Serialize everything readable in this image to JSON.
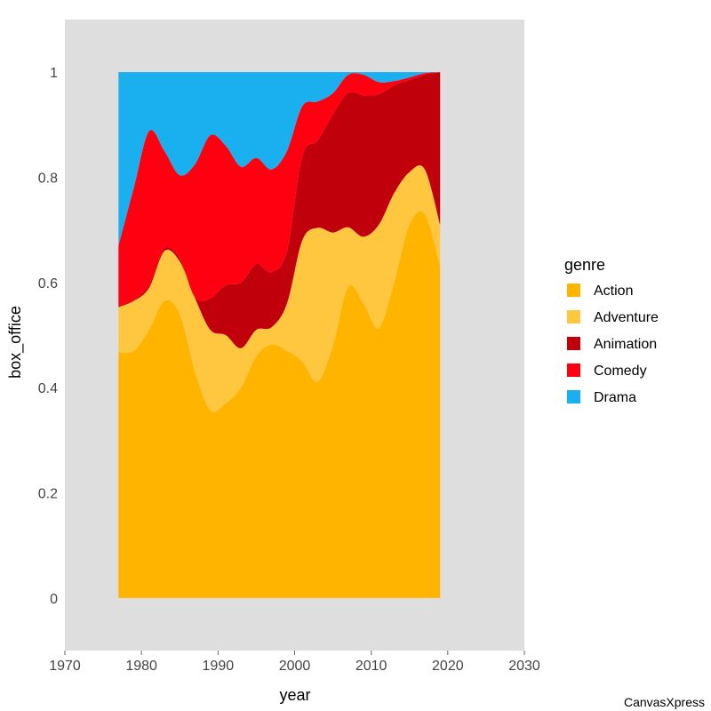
{
  "chart_data": {
    "type": "area",
    "stacked": "proportional",
    "xlabel": "year",
    "ylabel": "box_office",
    "xlim": [
      1970,
      2030
    ],
    "ylim": [
      -0.1,
      1.1
    ],
    "xticks": [
      "1970",
      "1980",
      "1990",
      "2000",
      "2010",
      "2020",
      "2030"
    ],
    "yticks": [
      "0",
      "0.2",
      "0.4",
      "0.6",
      "0.8",
      "1"
    ],
    "legend": {
      "title": "genre",
      "position": "right"
    },
    "x": [
      1977,
      1979,
      1981,
      1983,
      1985,
      1987,
      1989,
      1991,
      1993,
      1995,
      1997,
      1999,
      2001,
      2003,
      2005,
      2007,
      2009,
      2011,
      2013,
      2015,
      2017,
      2019
    ],
    "series": [
      {
        "name": "Action",
        "color": "#FFB400",
        "values": [
          0.467,
          0.47,
          0.51,
          0.565,
          0.54,
          0.43,
          0.357,
          0.37,
          0.4,
          0.46,
          0.482,
          0.47,
          0.45,
          0.411,
          0.48,
          0.592,
          0.56,
          0.513,
          0.6,
          0.71,
          0.73,
          0.631
        ]
      },
      {
        "name": "Adventure",
        "color": "#FFC640",
        "values": [
          0.086,
          0.095,
          0.08,
          0.095,
          0.1,
          0.14,
          0.153,
          0.13,
          0.075,
          0.05,
          0.033,
          0.09,
          0.23,
          0.293,
          0.215,
          0.113,
          0.127,
          0.197,
          0.17,
          0.1,
          0.085,
          0.079
        ]
      },
      {
        "name": "Animation",
        "color": "#C0000B",
        "values": [
          0.002,
          0.002,
          0.005,
          0.005,
          0.005,
          0.002,
          0.06,
          0.095,
          0.125,
          0.125,
          0.105,
          0.1,
          0.16,
          0.166,
          0.225,
          0.256,
          0.269,
          0.248,
          0.205,
          0.175,
          0.18,
          0.29
        ]
      },
      {
        "name": "Comedy",
        "color": "#FF0010",
        "values": [
          0.115,
          0.213,
          0.293,
          0.185,
          0.159,
          0.253,
          0.31,
          0.265,
          0.22,
          0.202,
          0.195,
          0.19,
          0.095,
          0.074,
          0.04,
          0.034,
          0.039,
          0.023,
          0.008,
          0.005,
          0.003,
          0.0
        ]
      },
      {
        "name": "Drama",
        "color": "#1AAFEF",
        "values": [
          0.33,
          0.22,
          0.112,
          0.15,
          0.196,
          0.175,
          0.12,
          0.14,
          0.18,
          0.163,
          0.185,
          0.15,
          0.065,
          0.056,
          0.04,
          0.005,
          0.005,
          0.019,
          0.017,
          0.01,
          0.002,
          0.0
        ]
      }
    ]
  },
  "credit": "CanvasXpress"
}
